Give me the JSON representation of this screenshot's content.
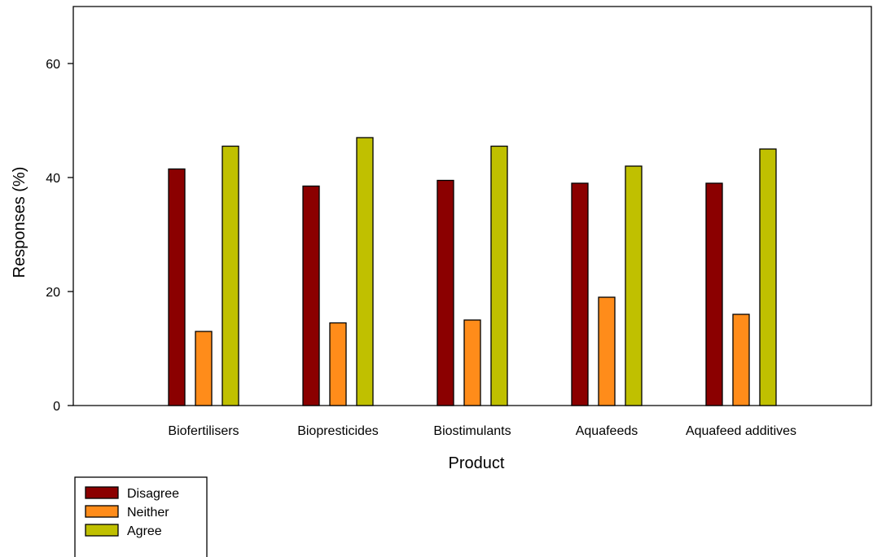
{
  "chart_data": {
    "type": "bar",
    "title": "",
    "xlabel": "Product",
    "ylabel": "Responses (%)",
    "ylim": [
      0,
      70
    ],
    "yticks": [
      0,
      20,
      40,
      60
    ],
    "categories": [
      "Biofertilisers",
      "Biopresticides",
      "Biostimulants",
      "Aquafeeds",
      "Aquafeed additives"
    ],
    "series": [
      {
        "name": "Disagree",
        "color": "#8b0000",
        "values": [
          41.5,
          38.5,
          39.5,
          39,
          39
        ]
      },
      {
        "name": "Neither",
        "color": "#ff8c1a",
        "values": [
          13,
          14.5,
          15,
          19,
          16
        ]
      },
      {
        "name": "Agree",
        "color": "#c0c000",
        "values": [
          45.5,
          47,
          45.5,
          42,
          45
        ]
      }
    ],
    "grid": false,
    "legend_position": "bottom-left"
  }
}
